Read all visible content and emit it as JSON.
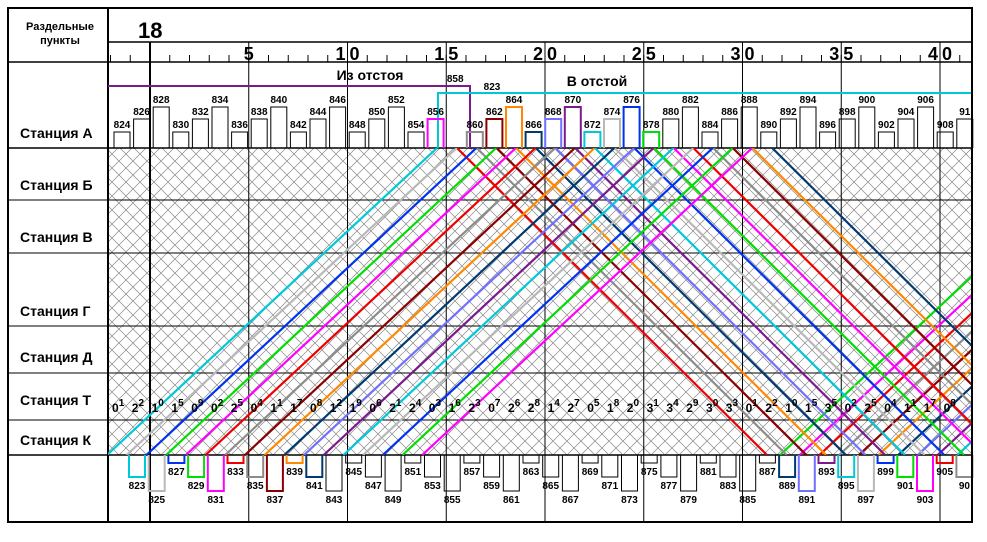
{
  "header": {
    "left_title_line1": "Раздельные",
    "left_title_line2": "пункты",
    "hour": "18",
    "minute_labels": [
      "5",
      "10",
      "15",
      "20",
      "25",
      "30",
      "35",
      "40"
    ]
  },
  "stations": [
    "Станция А",
    "Станция Б",
    "Станция В",
    "Станция Г",
    "Станция Д",
    "Станция Т",
    "Станция К"
  ],
  "depot": {
    "from_label": "Из отстоя",
    "to_label": "В отстой",
    "from_train": "858",
    "to_train": "823"
  },
  "top_trains": [
    "824",
    "826",
    "828",
    "830",
    "832",
    "834",
    "836",
    "838",
    "840",
    "842",
    "844",
    "846",
    "848",
    "850",
    "852",
    "854",
    "856",
    "858",
    "860",
    "862",
    "864",
    "866",
    "868",
    "870",
    "872",
    "874",
    "876",
    "878",
    "880",
    "882",
    "884",
    "886",
    "888",
    "890",
    "892",
    "894",
    "896",
    "898",
    "900",
    "902",
    "904",
    "906",
    "908",
    "91"
  ],
  "bottom_trains": [
    "823",
    "825",
    "827",
    "829",
    "831",
    "833",
    "835",
    "837",
    "839",
    "841",
    "843",
    "845",
    "847",
    "849",
    "851",
    "853",
    "855",
    "857",
    "859",
    "861",
    "863",
    "865",
    "867",
    "869",
    "871",
    "873",
    "875",
    "877",
    "879",
    "881",
    "883",
    "885",
    "887",
    "889",
    "891",
    "893",
    "895",
    "897",
    "899",
    "901",
    "903",
    "905",
    "90"
  ],
  "station_t_times": [
    [
      "0",
      "1"
    ],
    [
      "2",
      "2"
    ],
    [
      "1",
      "0"
    ],
    [
      "1",
      "5"
    ],
    [
      "0",
      "9"
    ],
    [
      "0",
      "2"
    ],
    [
      "2",
      "5"
    ],
    [
      "0",
      "4"
    ],
    [
      "1",
      "1"
    ],
    [
      "1",
      "7"
    ],
    [
      "0",
      "8"
    ],
    [
      "1",
      "2"
    ],
    [
      "1",
      "9"
    ],
    [
      "0",
      "6"
    ],
    [
      "2",
      "1"
    ],
    [
      "2",
      "4"
    ],
    [
      "0",
      "3"
    ],
    [
      "1",
      "6"
    ],
    [
      "2",
      "3"
    ],
    [
      "0",
      "7"
    ],
    [
      "2",
      "6"
    ],
    [
      "2",
      "8"
    ],
    [
      "1",
      "4"
    ],
    [
      "2",
      "7"
    ],
    [
      "0",
      "5"
    ],
    [
      "1",
      "8"
    ],
    [
      "2",
      "0"
    ],
    [
      "3",
      "1"
    ],
    [
      "3",
      "4"
    ],
    [
      "2",
      "9"
    ],
    [
      "3",
      "0"
    ],
    [
      "3",
      "3"
    ],
    [
      "0",
      "1"
    ],
    [
      "2",
      "2"
    ],
    [
      "1",
      "0"
    ],
    [
      "1",
      "5"
    ],
    [
      "3",
      "5"
    ],
    [
      "0",
      "2"
    ],
    [
      "2",
      "5"
    ],
    [
      "0",
      "4"
    ],
    [
      "1",
      "1"
    ],
    [
      "1",
      "7"
    ],
    [
      "0",
      "8"
    ]
  ]
}
